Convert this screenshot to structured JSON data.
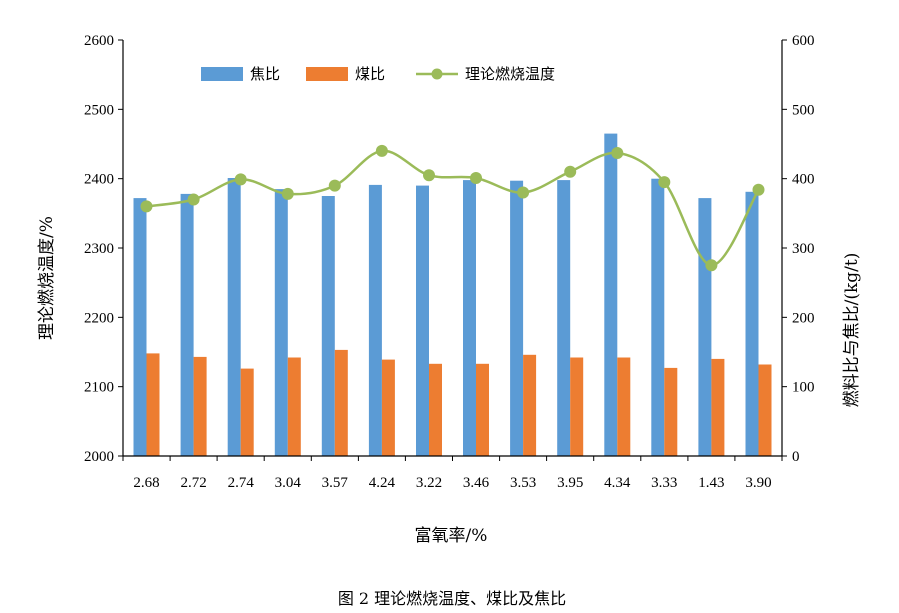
{
  "chart_data": {
    "type": "bar",
    "categories": [
      "2.68",
      "2.72",
      "2.74",
      "3.04",
      "3.57",
      "4.24",
      "3.22",
      "3.46",
      "3.53",
      "3.95",
      "4.34",
      "3.33",
      "1.43",
      "3.90"
    ],
    "series": [
      {
        "name": "焦比",
        "type": "bar",
        "axis": "right",
        "color": "#5b9bd5",
        "values": [
          372,
          378,
          401,
          385,
          375,
          391,
          390,
          398,
          397,
          398,
          465,
          400,
          372,
          381
        ]
      },
      {
        "name": "煤比",
        "type": "bar",
        "axis": "right",
        "color": "#ed7d31",
        "values": [
          148,
          143,
          126,
          142,
          153,
          139,
          133,
          133,
          146,
          142,
          142,
          127,
          140,
          132
        ]
      },
      {
        "name": "理论燃烧温度",
        "type": "line",
        "axis": "left",
        "color": "#9bbb59",
        "values": [
          2360,
          2370,
          2399,
          2378,
          2390,
          2440,
          2405,
          2401,
          2380,
          2410,
          2437,
          2395,
          2275,
          2384
        ]
      }
    ],
    "xlabel": "富氧率/%",
    "ylabel": "理论燃烧温度/%",
    "ylabel_right": "燃料比与焦比/(kg/t)",
    "ylim": [
      2000,
      2600
    ],
    "ylim_right": [
      0,
      600
    ],
    "yticks": [
      "2000",
      "2100",
      "2200",
      "2300",
      "2400",
      "2500",
      "2600"
    ],
    "yticks_right": [
      "0",
      "100",
      "200",
      "300",
      "400",
      "500",
      "600"
    ],
    "legend": [
      "焦比",
      "煤比",
      "理论燃烧温度"
    ],
    "legend_position": "top",
    "grid": false,
    "caption": "图 2    理论燃烧温度、煤比及焦比"
  }
}
